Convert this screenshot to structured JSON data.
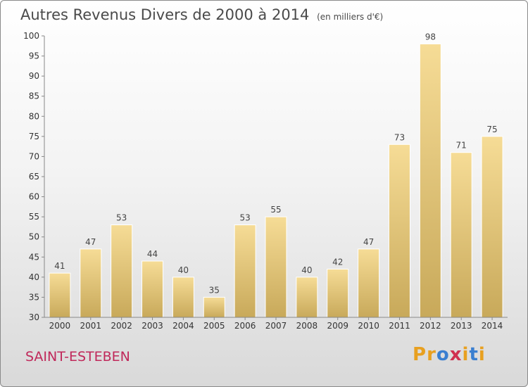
{
  "title": "Autres Revenus Divers de 2000 à 2014",
  "unit": "(en milliers d'€)",
  "commune": "SAINT-ESTEBEN",
  "logo": {
    "text": "Proxiti",
    "letters": [
      "P",
      "r",
      "o",
      "x",
      "i",
      "t",
      "i"
    ],
    "colors": [
      "#e8a020",
      "#e8a020",
      "#3a7fd0",
      "#d03050",
      "#e8a020",
      "#3a7fd0",
      "#e8a020"
    ]
  },
  "chart_data": {
    "type": "bar",
    "categories": [
      "2000",
      "2001",
      "2002",
      "2003",
      "2004",
      "2005",
      "2006",
      "2007",
      "2008",
      "2009",
      "2010",
      "2011",
      "2012",
      "2013",
      "2014"
    ],
    "values": [
      41,
      47,
      53,
      44,
      40,
      35,
      53,
      55,
      40,
      42,
      47,
      73,
      98,
      71,
      75
    ],
    "title": "Autres Revenus Divers de 2000 à 2014",
    "subtitle": "(en milliers d'€)",
    "xlabel": "",
    "ylabel": "",
    "ylim": [
      30,
      100
    ],
    "yticks": [
      30,
      35,
      40,
      45,
      50,
      55,
      60,
      65,
      70,
      75,
      80,
      85,
      90,
      95,
      100
    ],
    "grid": false,
    "bar_color": "#e0c27a"
  }
}
